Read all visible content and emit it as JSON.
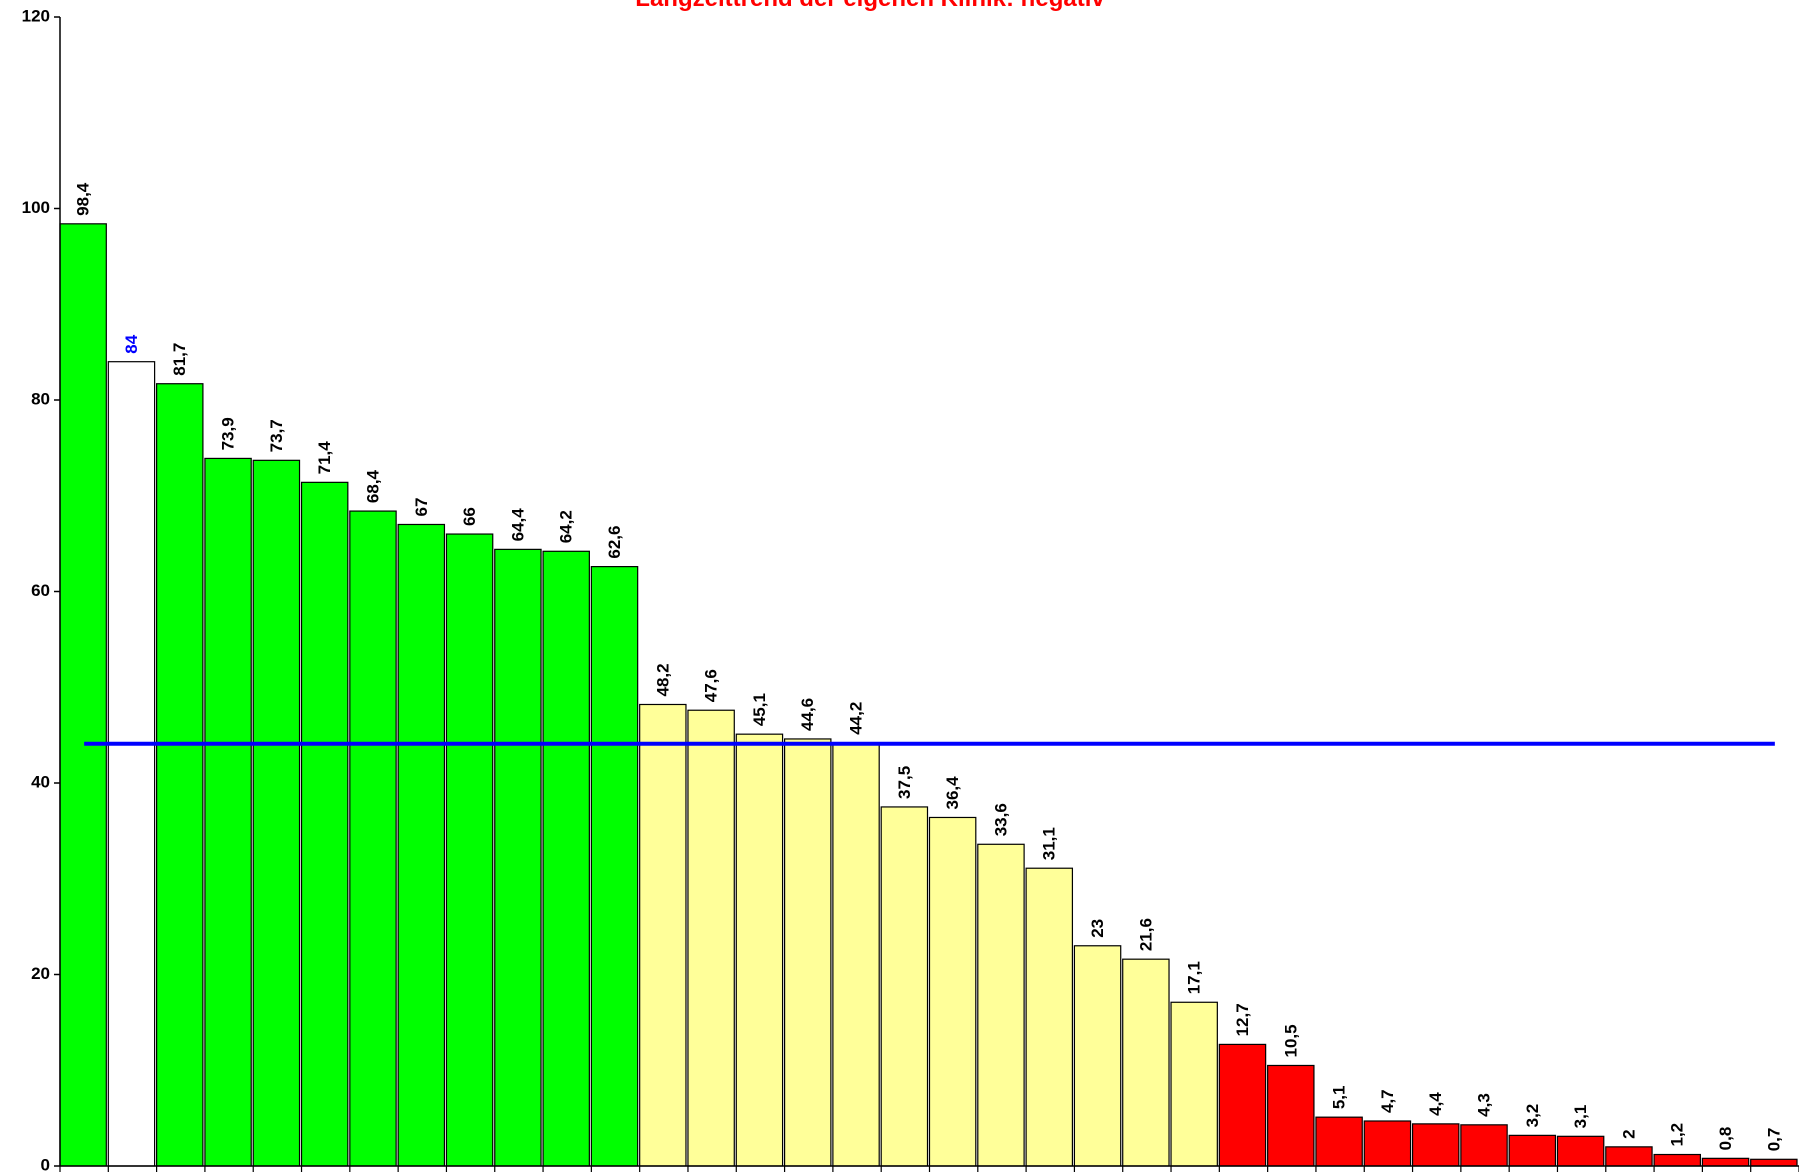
{
  "chart_data": {
    "type": "bar",
    "title": "Langzeittrend der eigenen Klinik: negativ",
    "title_color": "#ff0000",
    "categories": [
      null,
      null,
      null,
      null,
      null,
      null,
      null,
      null,
      null,
      null,
      null,
      null,
      null,
      null,
      null,
      null,
      null,
      null,
      null,
      null,
      null,
      null,
      null,
      null,
      null,
      null,
      null,
      null,
      null,
      null,
      null,
      null,
      null,
      null,
      null,
      null
    ],
    "values": [
      98.4,
      84,
      81.7,
      73.9,
      73.7,
      71.4,
      68.4,
      67,
      66,
      64.4,
      64.2,
      62.6,
      48.2,
      47.6,
      45.1,
      44.6,
      44.2,
      37.5,
      36.4,
      33.6,
      31.1,
      23,
      21.6,
      17.1,
      12.7,
      10.5,
      5.1,
      4.7,
      4.4,
      4.3,
      3.2,
      3.1,
      2,
      1.2,
      0.8,
      0.7
    ],
    "value_labels": [
      "98,4",
      "84",
      "81,7",
      "73,9",
      "73,7",
      "71,4",
      "68,4",
      "67",
      "66",
      "64,4",
      "64,2",
      "62,6",
      "48,2",
      "47,6",
      "45,1",
      "44,6",
      "44,2",
      "37,5",
      "36,4",
      "33,6",
      "31,1",
      "23",
      "21,6",
      "17,1",
      "12,7",
      "10,5",
      "5,1",
      "4,7",
      "4,4",
      "4,3",
      "3,2",
      "3,1",
      "2",
      "1,2",
      "0,8",
      "0,7"
    ],
    "colors": [
      "#00ff00",
      "#ffffff",
      "#00ff00",
      "#00ff00",
      "#00ff00",
      "#00ff00",
      "#00ff00",
      "#00ff00",
      "#00ff00",
      "#00ff00",
      "#00ff00",
      "#00ff00",
      "#ffff99",
      "#ffff99",
      "#ffff99",
      "#ffff99",
      "#ffff99",
      "#ffff99",
      "#ffff99",
      "#ffff99",
      "#ffff99",
      "#ffff99",
      "#ffff99",
      "#ffff99",
      "#ff0000",
      "#ff0000",
      "#ff0000",
      "#ff0000",
      "#ff0000",
      "#ff0000",
      "#ff0000",
      "#ff0000",
      "#ff0000",
      "#ff0000",
      "#ff0000",
      "#ff0000"
    ],
    "value_label_colors": [
      "#000000",
      "#0000ff",
      "#000000",
      "#000000",
      "#000000",
      "#000000",
      "#000000",
      "#000000",
      "#000000",
      "#000000",
      "#000000",
      "#000000",
      "#000000",
      "#000000",
      "#000000",
      "#000000",
      "#000000",
      "#000000",
      "#000000",
      "#000000",
      "#000000",
      "#000000",
      "#000000",
      "#000000",
      "#000000",
      "#000000",
      "#000000",
      "#000000",
      "#000000",
      "#000000",
      "#000000",
      "#000000",
      "#000000",
      "#000000",
      "#000000",
      "#000000"
    ],
    "reference_line": {
      "value": 44.1,
      "color": "#0000ff"
    },
    "ylim": [
      0,
      120
    ],
    "yticks": [
      0,
      20,
      40,
      60,
      80,
      100,
      120
    ],
    "grid": false
  }
}
